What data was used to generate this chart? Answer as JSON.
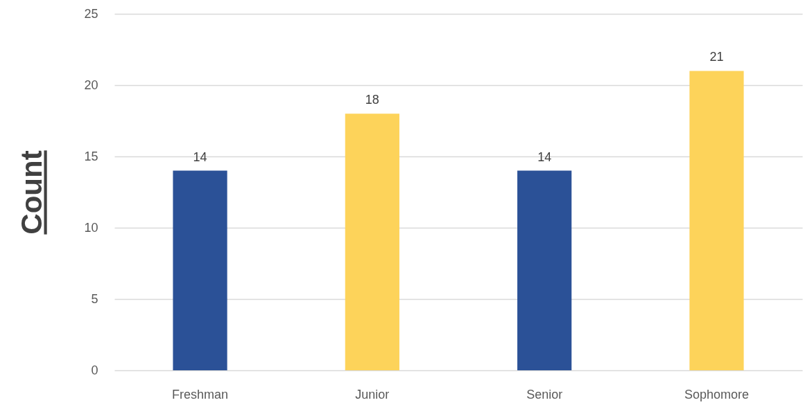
{
  "chart_data": {
    "type": "bar",
    "ylabel": "Count",
    "categories": [
      "Freshman",
      "Junior",
      "Senior",
      "Sophomore"
    ],
    "values": [
      14,
      18,
      14,
      21
    ],
    "colors": [
      "#2b5197",
      "#fdd35a",
      "#2b5197",
      "#fdd35a"
    ],
    "ylim": [
      0,
      25
    ],
    "yticks": [
      0,
      5,
      10,
      15,
      20,
      25
    ],
    "grid": "y",
    "data_labels": true
  }
}
